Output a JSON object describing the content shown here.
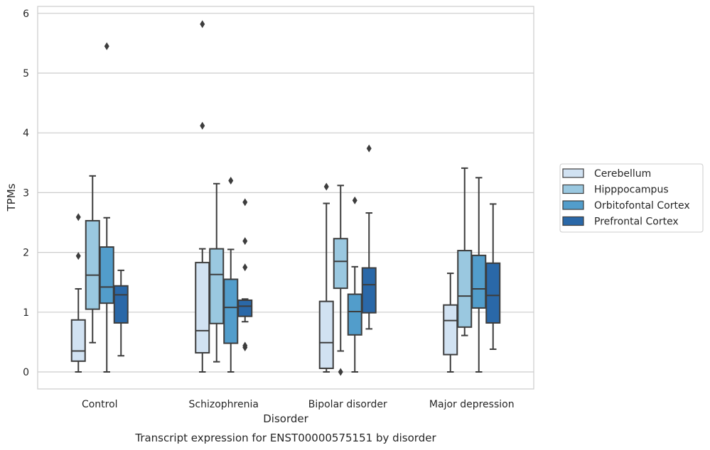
{
  "chart_data": {
    "type": "box",
    "title": "",
    "caption": "Transcript expression for ENST00000575151 by disorder",
    "xlabel": "Disorder",
    "ylabel": "TPMs",
    "ylim": [
      -0.28,
      6.12
    ],
    "yticks": [
      0,
      1,
      2,
      3,
      4,
      5,
      6
    ],
    "grid": "horizontal",
    "legend_position": "right",
    "categories": [
      "Control",
      "Schizophrenia",
      "Bipolar disorder",
      "Major depression"
    ],
    "series": [
      {
        "name": "Cerebellum",
        "color": "#d1e2f2",
        "boxes": [
          {
            "whislo": 0.0,
            "q1": 0.18,
            "med": 0.35,
            "q3": 0.87,
            "whishi": 1.39,
            "fliers": [
              1.94,
              2.59
            ]
          },
          {
            "whislo": 0.0,
            "q1": 0.32,
            "med": 0.69,
            "q3": 1.83,
            "whishi": 2.06,
            "fliers": [
              4.12,
              5.82
            ]
          },
          {
            "whislo": 0.0,
            "q1": 0.06,
            "med": 0.49,
            "q3": 1.18,
            "whishi": 2.82,
            "fliers": [
              3.1
            ]
          },
          {
            "whislo": 0.0,
            "q1": 0.29,
            "med": 0.86,
            "q3": 1.12,
            "whishi": 1.65,
            "fliers": []
          }
        ]
      },
      {
        "name": "Hipppocampus",
        "color": "#9ac8e0",
        "boxes": [
          {
            "whislo": 0.49,
            "q1": 1.05,
            "med": 1.62,
            "q3": 2.53,
            "whishi": 3.28,
            "fliers": []
          },
          {
            "whislo": 0.17,
            "q1": 0.81,
            "med": 1.63,
            "q3": 2.06,
            "whishi": 3.15,
            "fliers": []
          },
          {
            "whislo": 0.35,
            "q1": 1.4,
            "med": 1.85,
            "q3": 2.23,
            "whishi": 3.12,
            "fliers": [
              0.0
            ]
          },
          {
            "whislo": 0.61,
            "q1": 0.75,
            "med": 1.27,
            "q3": 2.03,
            "whishi": 3.41,
            "fliers": []
          }
        ]
      },
      {
        "name": "Orbitofontal Cortex",
        "color": "#529dcb",
        "boxes": [
          {
            "whislo": 0.0,
            "q1": 1.15,
            "med": 1.42,
            "q3": 2.09,
            "whishi": 2.58,
            "fliers": [
              5.45
            ]
          },
          {
            "whislo": 0.0,
            "q1": 0.48,
            "med": 1.08,
            "q3": 1.55,
            "whishi": 2.05,
            "fliers": [
              3.2
            ]
          },
          {
            "whislo": 0.0,
            "q1": 0.62,
            "med": 1.01,
            "q3": 1.3,
            "whishi": 1.76,
            "fliers": [
              2.87
            ]
          },
          {
            "whislo": 0.0,
            "q1": 1.07,
            "med": 1.39,
            "q3": 1.95,
            "whishi": 3.25,
            "fliers": []
          }
        ]
      },
      {
        "name": "Prefrontal Cortex",
        "color": "#2a68a8",
        "boxes": [
          {
            "whislo": 0.27,
            "q1": 0.82,
            "med": 1.29,
            "q3": 1.44,
            "whishi": 1.7,
            "fliers": []
          },
          {
            "whislo": 0.84,
            "q1": 0.93,
            "med": 1.1,
            "q3": 1.2,
            "whishi": 1.22,
            "fliers": [
              0.41,
              0.44,
              1.75,
              2.19,
              2.84
            ]
          },
          {
            "whislo": 0.72,
            "q1": 0.99,
            "med": 1.46,
            "q3": 1.74,
            "whishi": 2.66,
            "fliers": [
              3.74
            ]
          },
          {
            "whislo": 0.38,
            "q1": 0.82,
            "med": 1.28,
            "q3": 1.82,
            "whishi": 2.81,
            "fliers": []
          }
        ]
      }
    ]
  }
}
